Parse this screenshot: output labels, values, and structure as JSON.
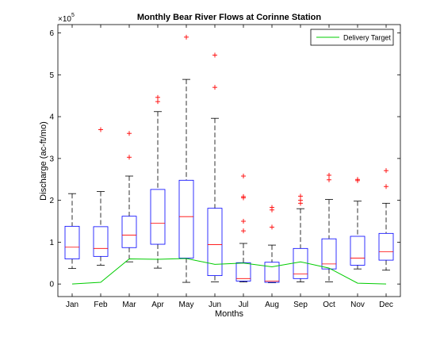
{
  "chart_data": {
    "type": "boxplot",
    "title": "Monthly Bear River Flows at Corinne Station",
    "xlabel": "Months",
    "ylabel": "Discharge (ac-ft/mo)",
    "y_exponent_label": "×10",
    "y_exponent_power": "5",
    "ylim": [
      -0.3,
      6.2
    ],
    "yticks": [
      0,
      1,
      2,
      3,
      4,
      5,
      6
    ],
    "ytick_labels": [
      "0",
      "1",
      "2",
      "3",
      "4",
      "5",
      "6"
    ],
    "y_scale_note": "values in units of 10^5 ac-ft/mo",
    "categories": [
      "Jan",
      "Feb",
      "Mar",
      "Apr",
      "May",
      "Jun",
      "Jul",
      "Aug",
      "Sep",
      "Oct",
      "Nov",
      "Dec"
    ],
    "boxes": [
      {
        "month": "Jan",
        "whisker_low": 0.37,
        "q1": 0.6,
        "median": 0.88,
        "q3": 1.38,
        "whisker_high": 2.16,
        "outliers": []
      },
      {
        "month": "Feb",
        "whisker_low": 0.45,
        "q1": 0.66,
        "median": 0.85,
        "q3": 1.37,
        "whisker_high": 2.21,
        "outliers": [
          3.69
        ]
      },
      {
        "month": "Mar",
        "whisker_low": 0.53,
        "q1": 0.87,
        "median": 1.17,
        "q3": 1.62,
        "whisker_high": 2.58,
        "outliers": [
          3.03,
          3.6
        ]
      },
      {
        "month": "Apr",
        "whisker_low": 0.38,
        "q1": 0.95,
        "median": 1.45,
        "q3": 2.26,
        "whisker_high": 4.12,
        "outliers": [
          4.36,
          4.46
        ]
      },
      {
        "month": "May",
        "whisker_low": 0.04,
        "q1": 0.62,
        "median": 1.61,
        "q3": 2.48,
        "whisker_high": 4.89,
        "outliers": [
          5.9
        ]
      },
      {
        "month": "Jun",
        "whisker_low": 0.05,
        "q1": 0.2,
        "median": 0.94,
        "q3": 1.81,
        "whisker_high": 3.96,
        "outliers": [
          4.7,
          5.47
        ]
      },
      {
        "month": "Jul",
        "whisker_low": 0.05,
        "q1": 0.07,
        "median": 0.13,
        "q3": 0.51,
        "whisker_high": 0.97,
        "outliers": [
          1.27,
          1.5,
          2.06,
          2.09,
          2.58
        ]
      },
      {
        "month": "Aug",
        "whisker_low": 0.03,
        "q1": 0.04,
        "median": 0.07,
        "q3": 0.52,
        "whisker_high": 0.93,
        "outliers": [
          1.36,
          1.77,
          1.83
        ]
      },
      {
        "month": "Sep",
        "whisker_low": 0.05,
        "q1": 0.13,
        "median": 0.24,
        "q3": 0.85,
        "whisker_high": 1.8,
        "outliers": [
          1.93,
          2.0,
          2.1
        ]
      },
      {
        "month": "Oct",
        "whisker_low": 0.05,
        "q1": 0.36,
        "median": 0.48,
        "q3": 1.08,
        "whisker_high": 2.02,
        "outliers": [
          2.49,
          2.6
        ]
      },
      {
        "month": "Nov",
        "whisker_low": 0.36,
        "q1": 0.45,
        "median": 0.62,
        "q3": 1.14,
        "whisker_high": 1.98,
        "outliers": [
          2.47,
          2.5
        ]
      },
      {
        "month": "Dec",
        "whisker_low": 0.33,
        "q1": 0.57,
        "median": 0.77,
        "q3": 1.21,
        "whisker_high": 1.93,
        "outliers": [
          2.33,
          2.71
        ]
      }
    ],
    "series": [
      {
        "name": "Delivery Target",
        "type": "line",
        "color": "#00cc00",
        "values": [
          0.0,
          0.04,
          0.6,
          0.59,
          0.61,
          0.47,
          0.5,
          0.41,
          0.53,
          0.38,
          0.02,
          0.0
        ]
      }
    ],
    "legend_placement": "top-right",
    "grid": false,
    "colors": {
      "box": "#0000ff",
      "median": "#ff0000",
      "whisker": "#000000",
      "outlier": "#ff0000",
      "target_line": "#00cc00"
    }
  }
}
